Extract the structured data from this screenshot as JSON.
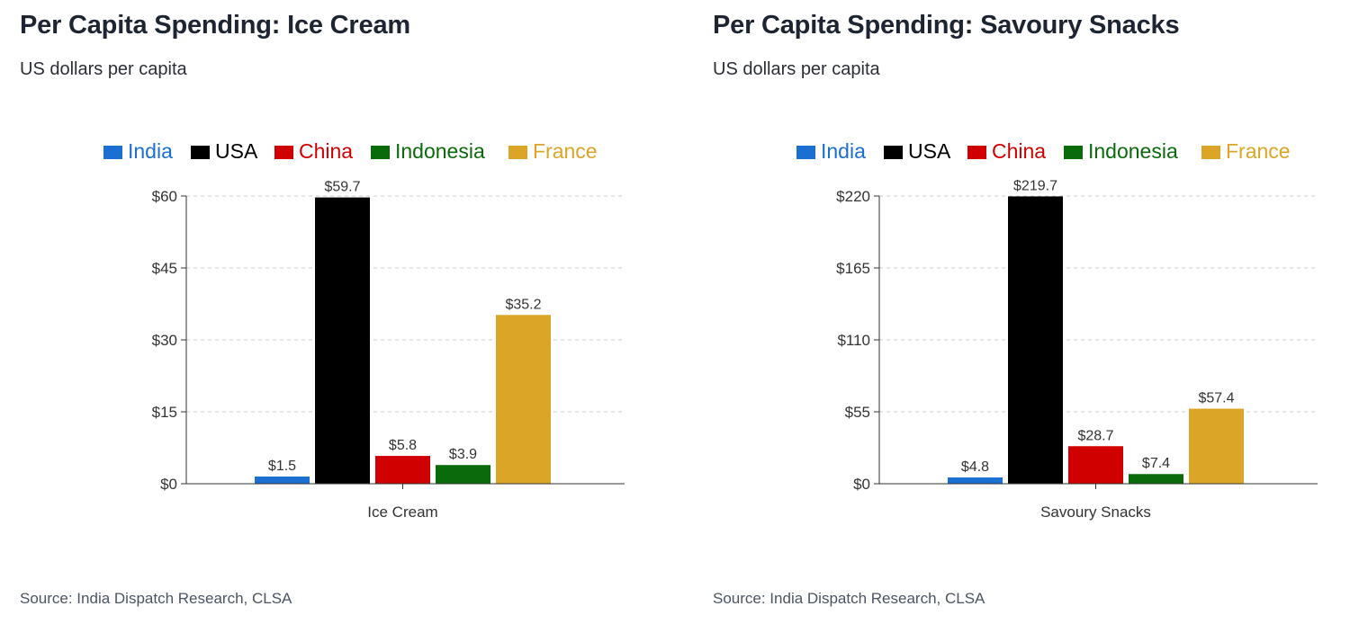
{
  "charts": [
    {
      "title": "Per Capita Spending: Ice Cream",
      "subtitle": "US dollars per capita",
      "source": "Source: India Dispatch Research, CLSA"
    },
    {
      "title": "Per Capita Spending: Savoury Snacks",
      "subtitle": "US dollars per capita",
      "source": "Source: India Dispatch Research, CLSA"
    }
  ],
  "chart_data": [
    {
      "type": "bar",
      "categories": [
        "Ice Cream"
      ],
      "series": [
        {
          "name": "India",
          "values": [
            1.5
          ],
          "color": "#1a6fd1"
        },
        {
          "name": "USA",
          "values": [
            59.7
          ],
          "color": "#000000"
        },
        {
          "name": "China",
          "values": [
            5.8
          ],
          "color": "#d10000"
        },
        {
          "name": "Indonesia",
          "values": [
            3.9
          ],
          "color": "#0a6b0a"
        },
        {
          "name": "France",
          "values": [
            35.2
          ],
          "color": "#dba528"
        }
      ],
      "value_labels": [
        "$1.5",
        "$59.7",
        "$5.8",
        "$3.9",
        "$35.2"
      ],
      "yticks": [
        "$0",
        "$15",
        "$30",
        "$45",
        "$60"
      ],
      "ylim": [
        0,
        60
      ],
      "xlabel": "",
      "ylabel": "",
      "grid": true,
      "legend": "top"
    },
    {
      "type": "bar",
      "categories": [
        "Savoury Snacks"
      ],
      "series": [
        {
          "name": "India",
          "values": [
            4.8
          ],
          "color": "#1a6fd1"
        },
        {
          "name": "USA",
          "values": [
            219.7
          ],
          "color": "#000000"
        },
        {
          "name": "China",
          "values": [
            28.7
          ],
          "color": "#d10000"
        },
        {
          "name": "Indonesia",
          "values": [
            7.4
          ],
          "color": "#0a6b0a"
        },
        {
          "name": "France",
          "values": [
            57.4
          ],
          "color": "#dba528"
        }
      ],
      "value_labels": [
        "$4.8",
        "$219.7",
        "$28.7",
        "$7.4",
        "$57.4"
      ],
      "yticks": [
        "$0",
        "$55",
        "$110",
        "$165",
        "$220"
      ],
      "ylim": [
        0,
        220
      ],
      "xlabel": "",
      "ylabel": "",
      "grid": true,
      "legend": "top"
    }
  ]
}
